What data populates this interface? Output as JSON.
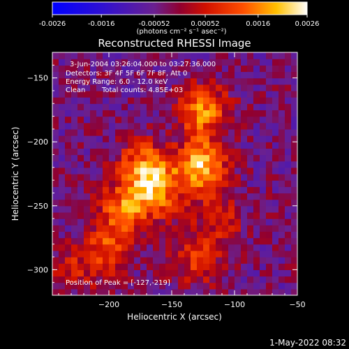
{
  "chart_data": {
    "type": "heatmap",
    "title": "Reconstructed RHESSI Image",
    "xlabel": "Heliocentric X (arcsec)",
    "ylabel": "Heliocentric Y (arcsec)",
    "xlim": [
      -245,
      -50
    ],
    "ylim": [
      -320,
      -130
    ],
    "xticks": [
      -200,
      -150,
      -100,
      -50
    ],
    "yticks": [
      -150,
      -200,
      -250,
      -300
    ],
    "colorbar": {
      "range": [
        -0.0026,
        0.0026
      ],
      "ticks": [
        "-0.0026",
        "-0.0016",
        "-0.00052",
        "0.00052",
        "0.0016",
        "0.0026"
      ],
      "tick_values": [
        -0.0026,
        -0.0016,
        -0.00052,
        0.00052,
        0.0016,
        0.0026
      ],
      "label": "(photons cm⁻² s⁻¹ asec⁻²)",
      "colors": [
        "#0000ff",
        "#5020b0",
        "#a01030",
        "#ff2000",
        "#ff9000",
        "#ffffff"
      ]
    },
    "annotations": {
      "time": "3-Jun-2004 03:26:04.000 to 03:27:36.000",
      "detectors": "Detectors: 3F 4F 5F 6F 7F 8F, Att 0",
      "energy": "Energy Range: 6.0 - 12.0 keV",
      "clean_label": "Clean",
      "counts": "Total counts: 4.85E+03",
      "peak": "Position of Peak = [-127,-219]"
    },
    "sources": [
      {
        "x": -127,
        "y": -219,
        "peak": 0.0026
      },
      {
        "x": -125,
        "y": -175,
        "peak": 0.002
      },
      {
        "x": -172,
        "y": -220,
        "peak": 0.002
      },
      {
        "x": -188,
        "y": -252,
        "peak": 0.0017
      },
      {
        "x": -160,
        "y": -240,
        "peak": 0.0016
      },
      {
        "x": -200,
        "y": -282,
        "peak": 0.0014
      },
      {
        "x": -130,
        "y": -292,
        "peak": 0.0012
      },
      {
        "x": -112,
        "y": -260,
        "peak": 0.0009
      },
      {
        "x": -225,
        "y": -300,
        "peak": 0.0008
      }
    ]
  },
  "footer": {
    "date": "1-May-2022 08:32"
  }
}
